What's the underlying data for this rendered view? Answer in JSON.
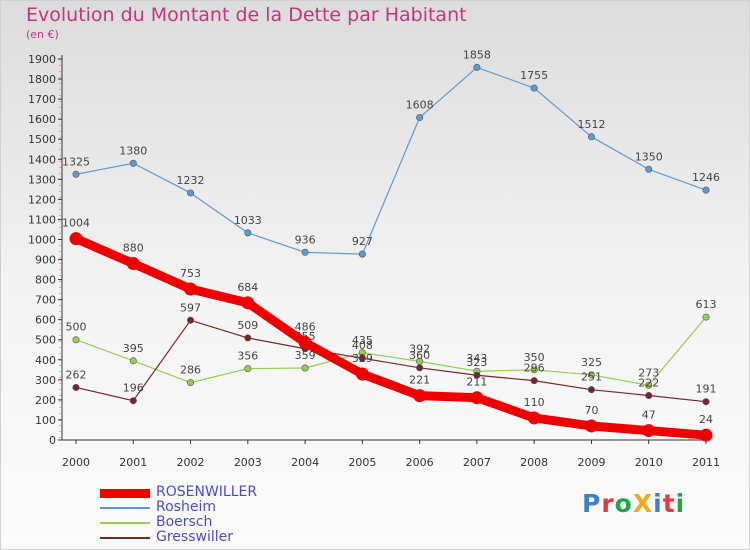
{
  "title": "Evolution du Montant de la Dette par Habitant",
  "unit_label": "(en €)",
  "logo_text": "ProXiti",
  "logo_colors": [
    "#3a7fd0",
    "#e6393f",
    "#1fa84a",
    "#f2a81c",
    "#3a7fd0",
    "#e6393f",
    "#1fa84a"
  ],
  "chart_data": {
    "type": "line",
    "x": [
      "2000",
      "2001",
      "2002",
      "2003",
      "2004",
      "2005",
      "2006",
      "2007",
      "2008",
      "2009",
      "2010",
      "2011"
    ],
    "ylim": [
      0,
      1900
    ],
    "yticks": [
      0,
      100,
      200,
      300,
      400,
      500,
      600,
      700,
      800,
      900,
      1000,
      1100,
      1200,
      1300,
      1400,
      1500,
      1600,
      1700,
      1800,
      1900
    ],
    "grid": false,
    "legend_position": "bottom-left",
    "series": [
      {
        "name": "ROSENWILLER",
        "color": "#ee0000",
        "width": "thick",
        "values": [
          1004,
          880,
          753,
          684,
          486,
          329,
          221,
          211,
          110,
          70,
          47,
          24
        ]
      },
      {
        "name": "Rosheim",
        "color": "#5b9bd5",
        "width": "thin",
        "values": [
          1325,
          1380,
          1232,
          1033,
          936,
          927,
          1608,
          1858,
          1755,
          1512,
          1350,
          1246
        ]
      },
      {
        "name": "Boersch",
        "color": "#92d050",
        "width": "thin",
        "values": [
          500,
          395,
          286,
          356,
          359,
          435,
          392,
          343,
          350,
          325,
          273,
          613
        ]
      },
      {
        "name": "Gresswiller",
        "color": "#7a2626",
        "width": "thin",
        "values": [
          262,
          196,
          597,
          509,
          455,
          408,
          360,
          323,
          296,
          251,
          222,
          191
        ]
      }
    ]
  }
}
